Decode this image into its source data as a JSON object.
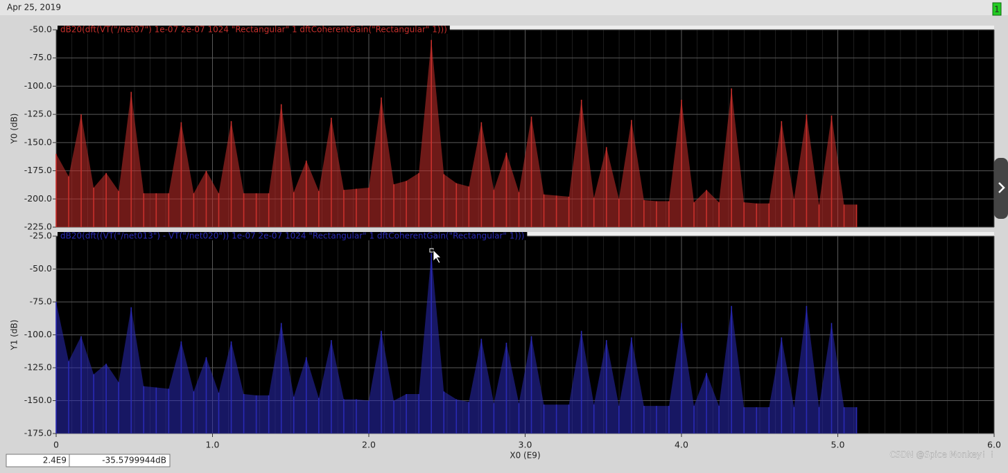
{
  "header": {
    "date": "Apr 25, 2019",
    "badge": "1"
  },
  "chart_data": [
    {
      "type": "stem",
      "ylabel": "Y0 (dB)",
      "ylim": [
        -225,
        -50
      ],
      "yticks": [
        {
          "value": -50,
          "label": "-50.0"
        },
        {
          "value": -75,
          "label": "-75.0"
        },
        {
          "value": -100,
          "label": "-100.0"
        },
        {
          "value": -125,
          "label": "-125.0"
        },
        {
          "value": -150,
          "label": "-150.0"
        },
        {
          "value": -175,
          "label": "-175.0"
        },
        {
          "value": -200,
          "label": "-200.0"
        },
        {
          "value": -225,
          "label": "-225.0"
        }
      ],
      "xlim": [
        0,
        6
      ],
      "xticks": [
        0,
        1,
        2,
        3,
        4,
        5,
        6
      ],
      "grid": true,
      "x": [
        0,
        0.08,
        0.16,
        0.24,
        0.32,
        0.4,
        0.48,
        0.56,
        0.64,
        0.72,
        0.8,
        0.88,
        0.96,
        1.04,
        1.12,
        1.2,
        1.28,
        1.36,
        1.44,
        1.52,
        1.6,
        1.68,
        1.76,
        1.84,
        1.92,
        2,
        2.08,
        2.16,
        2.24,
        2.32,
        2.4,
        2.48,
        2.56,
        2.64,
        2.72,
        2.8,
        2.88,
        2.96,
        3.04,
        3.12,
        3.2,
        3.28,
        3.36,
        3.44,
        3.52,
        3.6,
        3.68,
        3.76,
        3.84,
        3.92,
        4,
        4.08,
        4.16,
        4.24,
        4.32,
        4.4,
        4.48,
        4.56,
        4.64,
        4.72,
        4.8,
        4.88,
        4.96,
        5.04,
        5.12
      ],
      "series": [
        {
          "name": "dB20(dft(VT(\"/net07\") 1e-07 2e-07 1024 \"Rectangular\" 1 dftCoherentGain(\"Rectangular\" 1)))",
          "color": "#c8302c",
          "values": [
            -160,
            -180,
            -125,
            -190,
            -177,
            -193,
            -105,
            -195,
            -195,
            -195,
            -132,
            -195,
            -175,
            -195,
            -131,
            -195,
            -195,
            -195,
            -116,
            -194,
            -166,
            -193,
            -128,
            -192,
            -191,
            -190,
            -110,
            -187,
            -184,
            -177,
            -59,
            -178,
            -186,
            -189,
            -132,
            -192,
            -159,
            -194,
            -127,
            -196,
            -197,
            -198,
            -112,
            -199,
            -154,
            -200,
            -130,
            -201,
            -202,
            -202,
            -112,
            -203,
            -192,
            -203,
            -102,
            -203,
            -204,
            -204,
            -131,
            -200,
            -125,
            -205,
            -126,
            -205,
            -205
          ]
        }
      ]
    },
    {
      "type": "stem",
      "ylabel": "Y1 (dB)",
      "xlabel": "X0 (E9)",
      "ylim": [
        -175,
        -25
      ],
      "yticks": [
        {
          "value": -25,
          "label": "-25.0"
        },
        {
          "value": -50,
          "label": "-50.0"
        },
        {
          "value": -75,
          "label": "-75.0"
        },
        {
          "value": -100,
          "label": "-100.0"
        },
        {
          "value": -125,
          "label": "-125.0"
        },
        {
          "value": -150,
          "label": "-150.0"
        },
        {
          "value": -175,
          "label": "-175.0"
        }
      ],
      "xlim": [
        0,
        6
      ],
      "xticks": [
        0,
        {
          "value": 1,
          "label": "1.0"
        },
        {
          "value": 2,
          "label": "2.0"
        },
        {
          "value": 3,
          "label": "3.0"
        },
        {
          "value": 4,
          "label": "4.0"
        },
        {
          "value": 5,
          "label": "5.0"
        },
        {
          "value": 6,
          "label": "6.0"
        }
      ],
      "grid": true,
      "x": [
        0,
        0.08,
        0.16,
        0.24,
        0.32,
        0.4,
        0.48,
        0.56,
        0.64,
        0.72,
        0.8,
        0.88,
        0.96,
        1.04,
        1.12,
        1.2,
        1.28,
        1.36,
        1.44,
        1.52,
        1.6,
        1.68,
        1.76,
        1.84,
        1.92,
        2,
        2.08,
        2.16,
        2.24,
        2.32,
        2.4,
        2.48,
        2.56,
        2.64,
        2.72,
        2.8,
        2.88,
        2.96,
        3.04,
        3.12,
        3.2,
        3.28,
        3.36,
        3.44,
        3.52,
        3.6,
        3.68,
        3.76,
        3.84,
        3.92,
        4,
        4.08,
        4.16,
        4.24,
        4.32,
        4.4,
        4.48,
        4.56,
        4.64,
        4.72,
        4.8,
        4.88,
        4.96,
        5.04,
        5.12
      ],
      "series": [
        {
          "name": "dB20(dft((VT(\"/net013\") - VT(\"/net020\")) 1e-07 2e-07 1024 \"Rectangular\" 1 dftCoherentGain(\"Rectangular\" 1)))",
          "color": "#2a2ab4",
          "values": [
            -75,
            -120,
            -101,
            -130,
            -122,
            -136,
            -79,
            -139,
            -140,
            -141,
            -105,
            -143,
            -117,
            -144,
            -105,
            -145,
            -146,
            -146,
            -91,
            -147,
            -117,
            -148,
            -104,
            -149,
            -149,
            -150,
            -97,
            -150,
            -145,
            -145,
            -38,
            -143,
            -149,
            -151,
            -103,
            -152,
            -106,
            -152,
            -101,
            -153,
            -153,
            -153,
            -97,
            -153,
            -104,
            -154,
            -102,
            -154,
            -154,
            -154,
            -91,
            -154,
            -129,
            -154,
            -78,
            -155,
            -155,
            -155,
            -102,
            -155,
            -78,
            -155,
            -91,
            -155,
            -155
          ]
        }
      ]
    }
  ],
  "status": {
    "cursor_x": "2.4E9",
    "cursor_y": "-35.5799944dB"
  },
  "watermark": "CSDN @Spice Monkey！！"
}
